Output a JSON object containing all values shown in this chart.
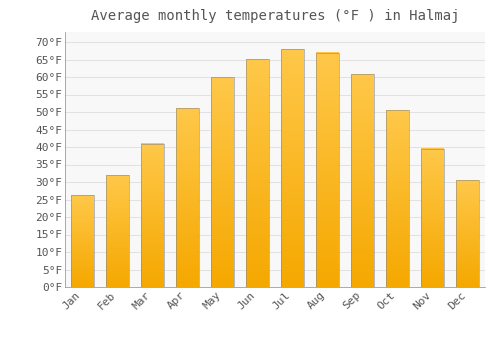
{
  "title": "Average monthly temperatures (°F ) in Halmaj",
  "months": [
    "Jan",
    "Feb",
    "Mar",
    "Apr",
    "May",
    "Jun",
    "Jul",
    "Aug",
    "Sep",
    "Oct",
    "Nov",
    "Dec"
  ],
  "values": [
    26.2,
    32.0,
    41.0,
    51.1,
    59.9,
    65.1,
    68.0,
    66.9,
    60.8,
    50.5,
    39.5,
    30.5
  ],
  "bar_color_top": "#FFC84A",
  "bar_color_bottom": "#F5A800",
  "bar_edge_color": "#888888",
  "background_color": "#FFFFFF",
  "plot_bg_color": "#F8F8F8",
  "grid_color": "#DDDDDD",
  "yticks": [
    0,
    5,
    10,
    15,
    20,
    25,
    30,
    35,
    40,
    45,
    50,
    55,
    60,
    65,
    70
  ],
  "ylim": [
    0,
    73
  ],
  "title_fontsize": 10,
  "tick_fontsize": 8,
  "font_color": "#555555",
  "bar_width": 0.65
}
